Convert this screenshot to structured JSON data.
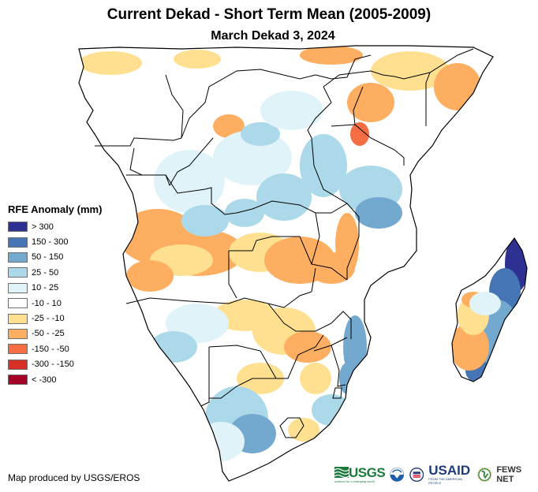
{
  "header": {
    "title": "Current Dekad - Short Term Mean (2005-2009)",
    "subtitle": "March Dekad 3, 2024"
  },
  "legend": {
    "title": "RFE Anomaly (mm)",
    "items": [
      {
        "label": "> 300",
        "color": "#2e3192"
      },
      {
        "label": "150 - 300",
        "color": "#4575b4"
      },
      {
        "label": "50 - 150",
        "color": "#74a9cf"
      },
      {
        "label": "25 - 50",
        "color": "#abd9e9"
      },
      {
        "label": "10 - 25",
        "color": "#e0f3f8"
      },
      {
        "label": "-10 - 10",
        "color": "#ffffff"
      },
      {
        "label": "-25 - -10",
        "color": "#fee090"
      },
      {
        "label": "-50 - -25",
        "color": "#fdae61"
      },
      {
        "label": "-150 - -50",
        "color": "#f46d43"
      },
      {
        "label": "-300 - -150",
        "color": "#d73027"
      },
      {
        "label": "< -300",
        "color": "#a50026"
      }
    ]
  },
  "map": {
    "region": "Southern and Central Africa",
    "variable": "Rainfall estimate anomaly (mm)"
  },
  "footer": {
    "credit": "Map produced by USGS/EROS",
    "logos": {
      "usgs": "USGS",
      "usgs_tagline": "science for a changing world",
      "noaa": "NOAA",
      "usaid": "USAID",
      "usaid_tagline": "FROM THE AMERICAN PEOPLE",
      "fews": "FEWS NET"
    }
  }
}
